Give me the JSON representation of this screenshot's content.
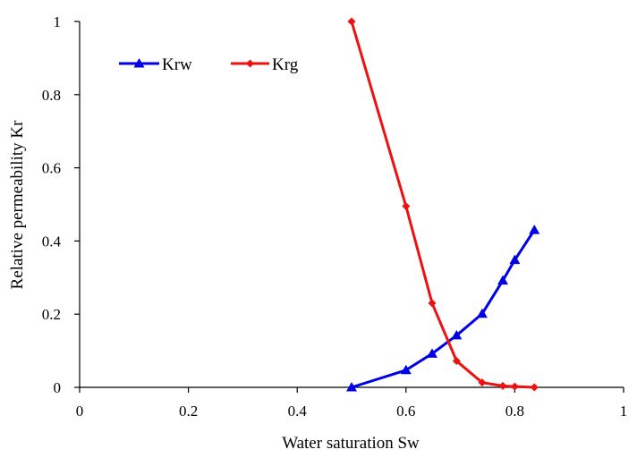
{
  "chart_data": {
    "type": "line",
    "title": "",
    "xlabel": "Water saturation Sw",
    "ylabel": "Relative permeability Kr",
    "xlim": [
      0,
      1
    ],
    "ylim": [
      0,
      1
    ],
    "x_ticks": [
      "0",
      "0.2",
      "0.4",
      "0.6",
      "0.8",
      "1"
    ],
    "y_ticks": [
      "0",
      "0.2",
      "0.4",
      "0.6",
      "0.8",
      "1"
    ],
    "grid": false,
    "legend_position": "top-left",
    "series": [
      {
        "name": "Krw",
        "color": "#0000e6",
        "marker": "triangle",
        "x": [
          0.5,
          0.6,
          0.648,
          0.693,
          0.74,
          0.778,
          0.8,
          0.836
        ],
        "y": [
          0.0,
          0.047,
          0.092,
          0.142,
          0.201,
          0.292,
          0.348,
          0.43
        ]
      },
      {
        "name": "Krg",
        "color": "#ee1111",
        "marker": "diamond",
        "x": [
          0.5,
          0.6,
          0.648,
          0.693,
          0.74,
          0.778,
          0.8,
          0.836
        ],
        "y": [
          1.0,
          0.495,
          0.23,
          0.072,
          0.013,
          0.004,
          0.002,
          0.0
        ]
      }
    ]
  }
}
